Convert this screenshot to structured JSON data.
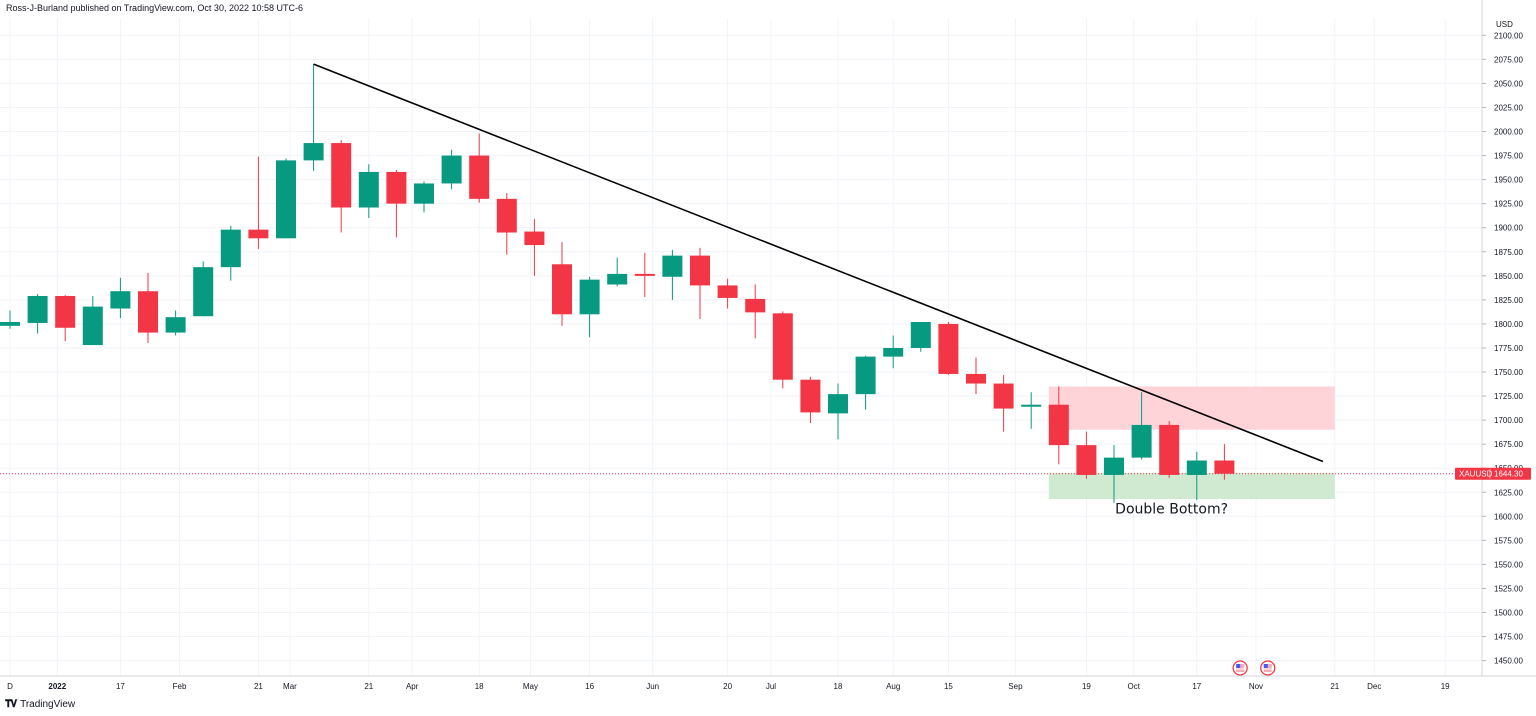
{
  "header": {
    "published_text": "Ross-J-Burland published on TradingView.com, Oct 30, 2022 10:58 UTC-6"
  },
  "footer": {
    "logo_icon": "tradingview-logo-icon",
    "brand": "TradingView"
  },
  "colors": {
    "up": "#089981",
    "down": "#f23645",
    "resistance_zone": "#ffcdd2",
    "support_zone": "#c8e6c9",
    "trendline": "#000000",
    "price_tag": "#f23645"
  },
  "chart_data": {
    "type": "candlestick",
    "symbol": "XAUUSD",
    "currency": "USD",
    "interval": "weekly",
    "last_price": "1644.30",
    "ylim": [
      1434,
      2118
    ],
    "y_ticks": [
      "1450.00",
      "1475.00",
      "1500.00",
      "1525.00",
      "1550.00",
      "1575.00",
      "1600.00",
      "1625.00",
      "1650.00",
      "1675.00",
      "1700.00",
      "1725.00",
      "1750.00",
      "1775.00",
      "1800.00",
      "1825.00",
      "1850.00",
      "1875.00",
      "1900.00",
      "1925.00",
      "1950.00",
      "1975.00",
      "2000.00",
      "2025.00",
      "2050.00",
      "2075.00",
      "2100.00"
    ],
    "x_ticks": [
      {
        "label": "D",
        "date": "2021-12-20"
      },
      {
        "label": "2022",
        "date": "2022-01-01"
      },
      {
        "label": "17",
        "date": "2022-01-17"
      },
      {
        "label": "Feb",
        "date": "2022-02-01"
      },
      {
        "label": "21",
        "date": "2022-02-21"
      },
      {
        "label": "Mar",
        "date": "2022-03-01"
      },
      {
        "label": "21",
        "date": "2022-03-21"
      },
      {
        "label": "Apr",
        "date": "2022-04-01"
      },
      {
        "label": "18",
        "date": "2022-04-18"
      },
      {
        "label": "May",
        "date": "2022-05-01"
      },
      {
        "label": "16",
        "date": "2022-05-16"
      },
      {
        "label": "Jun",
        "date": "2022-06-01"
      },
      {
        "label": "20",
        "date": "2022-06-20"
      },
      {
        "label": "Jul",
        "date": "2022-07-01"
      },
      {
        "label": "18",
        "date": "2022-07-18"
      },
      {
        "label": "Aug",
        "date": "2022-08-01"
      },
      {
        "label": "15",
        "date": "2022-08-15"
      },
      {
        "label": "Sep",
        "date": "2022-09-01"
      },
      {
        "label": "19",
        "date": "2022-09-19"
      },
      {
        "label": "Oct",
        "date": "2022-10-01"
      },
      {
        "label": "17",
        "date": "2022-10-17"
      },
      {
        "label": "Nov",
        "date": "2022-11-01"
      },
      {
        "label": "21",
        "date": "2022-11-21"
      },
      {
        "label": "Dec",
        "date": "2022-12-01"
      },
      {
        "label": "19",
        "date": "2022-12-19"
      }
    ],
    "candles": [
      {
        "date": "2021-12-20",
        "o": 1798,
        "h": 1814,
        "l": 1795,
        "c": 1802
      },
      {
        "date": "2021-12-27",
        "o": 1801,
        "h": 1831,
        "l": 1790,
        "c": 1829
      },
      {
        "date": "2022-01-03",
        "o": 1829,
        "h": 1830,
        "l": 1782,
        "c": 1796
      },
      {
        "date": "2022-01-10",
        "o": 1778,
        "h": 1829,
        "l": 1778,
        "c": 1818
      },
      {
        "date": "2022-01-17",
        "o": 1816,
        "h": 1848,
        "l": 1806,
        "c": 1834
      },
      {
        "date": "2022-01-24",
        "o": 1834,
        "h": 1853,
        "l": 1780,
        "c": 1791
      },
      {
        "date": "2022-01-31",
        "o": 1791,
        "h": 1814,
        "l": 1788,
        "c": 1807
      },
      {
        "date": "2022-02-07",
        "o": 1808,
        "h": 1865,
        "l": 1808,
        "c": 1859
      },
      {
        "date": "2022-02-14",
        "o": 1859,
        "h": 1902,
        "l": 1845,
        "c": 1898
      },
      {
        "date": "2022-02-21",
        "o": 1898,
        "h": 1974,
        "l": 1878,
        "c": 1889
      },
      {
        "date": "2022-02-28",
        "o": 1889,
        "h": 1972,
        "l": 1889,
        "c": 1970
      },
      {
        "date": "2022-03-07",
        "o": 1970,
        "h": 2070,
        "l": 1959,
        "c": 1988
      },
      {
        "date": "2022-03-14",
        "o": 1988,
        "h": 1991,
        "l": 1895,
        "c": 1921
      },
      {
        "date": "2022-03-21",
        "o": 1921,
        "h": 1966,
        "l": 1910,
        "c": 1958
      },
      {
        "date": "2022-03-28",
        "o": 1958,
        "h": 1960,
        "l": 1890,
        "c": 1925
      },
      {
        "date": "2022-04-04",
        "o": 1925,
        "h": 1948,
        "l": 1916,
        "c": 1946
      },
      {
        "date": "2022-04-11",
        "o": 1946,
        "h": 1981,
        "l": 1940,
        "c": 1975
      },
      {
        "date": "2022-04-18",
        "o": 1975,
        "h": 1998,
        "l": 1926,
        "c": 1930
      },
      {
        "date": "2022-04-25",
        "o": 1930,
        "h": 1936,
        "l": 1872,
        "c": 1895
      },
      {
        "date": "2022-05-02",
        "o": 1896,
        "h": 1909,
        "l": 1850,
        "c": 1882
      },
      {
        "date": "2022-05-09",
        "o": 1862,
        "h": 1885,
        "l": 1798,
        "c": 1810
      },
      {
        "date": "2022-05-16",
        "o": 1810,
        "h": 1849,
        "l": 1786,
        "c": 1846
      },
      {
        "date": "2022-05-23",
        "o": 1841,
        "h": 1869,
        "l": 1839,
        "c": 1852
      },
      {
        "date": "2022-05-30",
        "o": 1852,
        "h": 1874,
        "l": 1828,
        "c": 1851
      },
      {
        "date": "2022-06-06",
        "o": 1849,
        "h": 1877,
        "l": 1825,
        "c": 1871
      },
      {
        "date": "2022-06-13",
        "o": 1871,
        "h": 1879,
        "l": 1805,
        "c": 1840
      },
      {
        "date": "2022-06-20",
        "o": 1840,
        "h": 1847,
        "l": 1816,
        "c": 1827
      },
      {
        "date": "2022-06-27",
        "o": 1826,
        "h": 1841,
        "l": 1785,
        "c": 1812
      },
      {
        "date": "2022-07-04",
        "o": 1811,
        "h": 1813,
        "l": 1733,
        "c": 1742
      },
      {
        "date": "2022-07-11",
        "o": 1742,
        "h": 1745,
        "l": 1697,
        "c": 1708
      },
      {
        "date": "2022-07-18",
        "o": 1707,
        "h": 1738,
        "l": 1680,
        "c": 1727
      },
      {
        "date": "2022-07-25",
        "o": 1727,
        "h": 1767,
        "l": 1711,
        "c": 1766
      },
      {
        "date": "2022-08-01",
        "o": 1766,
        "h": 1788,
        "l": 1754,
        "c": 1775
      },
      {
        "date": "2022-08-08",
        "o": 1775,
        "h": 1802,
        "l": 1771,
        "c": 1802
      },
      {
        "date": "2022-08-15",
        "o": 1800,
        "h": 1802,
        "l": 1747,
        "c": 1748
      },
      {
        "date": "2022-08-22",
        "o": 1748,
        "h": 1765,
        "l": 1727,
        "c": 1738
      },
      {
        "date": "2022-08-29",
        "o": 1738,
        "h": 1747,
        "l": 1688,
        "c": 1712
      },
      {
        "date": "2022-09-05",
        "o": 1714,
        "h": 1729,
        "l": 1691,
        "c": 1716
      },
      {
        "date": "2022-09-12",
        "o": 1716,
        "h": 1735,
        "l": 1654,
        "c": 1674
      },
      {
        "date": "2022-09-19",
        "o": 1674,
        "h": 1688,
        "l": 1639,
        "c": 1643
      },
      {
        "date": "2022-09-26",
        "o": 1643,
        "h": 1674,
        "l": 1614,
        "c": 1661
      },
      {
        "date": "2022-10-03",
        "o": 1661,
        "h": 1729,
        "l": 1659,
        "c": 1695
      },
      {
        "date": "2022-10-10",
        "o": 1695,
        "h": 1699,
        "l": 1640,
        "c": 1643
      },
      {
        "date": "2022-10-17",
        "o": 1643,
        "h": 1667,
        "l": 1617,
        "c": 1658
      },
      {
        "date": "2022-10-24",
        "o": 1658,
        "h": 1675,
        "l": 1638,
        "c": 1644.3
      }
    ],
    "annotations": {
      "trendline": {
        "from": {
          "date": "2022-03-07",
          "price": 2070
        },
        "to": {
          "date": "2022-11-18",
          "price": 1657
        }
      },
      "resistance_zone": {
        "from_date": "2022-09-12",
        "to_date": "2022-11-21",
        "top": 1735,
        "bottom": 1690
      },
      "support_zone": {
        "from_date": "2022-09-12",
        "to_date": "2022-11-21",
        "top": 1645,
        "bottom": 1618
      },
      "label": {
        "text": "Double Bottom?",
        "date": "2022-10-03",
        "price": 1608
      },
      "event_icons": [
        {
          "date": "2022-10-28",
          "icon": "us-flag-event-icon"
        },
        {
          "date": "2022-11-04",
          "icon": "us-flag-event-icon"
        }
      ]
    },
    "grid": true,
    "legend": "none"
  }
}
